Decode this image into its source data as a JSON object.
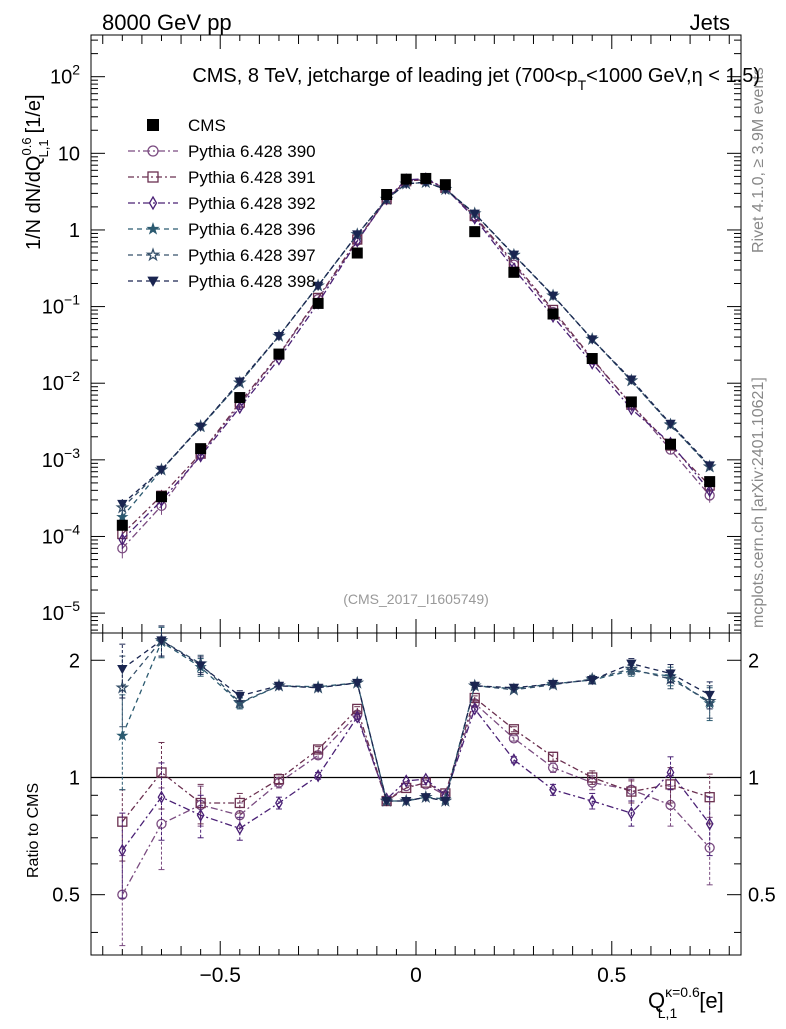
{
  "header": {
    "left": "8000 GeV pp",
    "right": "Jets"
  },
  "side": {
    "rivet": "Rivet 4.1.0, ≥ 3.9M events",
    "mcplots": "mcplots.cern.ch [arXiv:2401.10621]"
  },
  "chart_data": {
    "type": "scatter",
    "title_text": "CMS, 8 TeV, jetcharge of leading jet (700<p",
    "title_sub": "T",
    "title_tail": "<1000 GeV,η < 1.5)",
    "analysis_id": "(CMS_2017_I1605749)",
    "ylabel_main": "1/N dN/dQ",
    "ylabel_sup": "0.6",
    "ylabel_sub": "L,1",
    "ylabel_unit": "[1/e]",
    "ylabel_ratio": "Ratio to CMS",
    "xlabel_main": "Q",
    "xlabel_sup": "κ=0.6",
    "xlabel_sub": "L,1",
    "xlabel_unit": "[e]",
    "xlim": [
      -0.83,
      0.83
    ],
    "ylim_main": [
      5.5e-06,
      350
    ],
    "ylim_ratio": [
      0.35,
      2.35
    ],
    "main_yticks": [
      {
        "v": 100,
        "b": "10",
        "e": "2"
      },
      {
        "v": 10,
        "b": "10",
        "e": ""
      },
      {
        "v": 1,
        "b": "1",
        "e": ""
      },
      {
        "v": 0.1,
        "b": "10",
        "e": "−1"
      },
      {
        "v": 0.01,
        "b": "10",
        "e": "−2"
      },
      {
        "v": 0.001,
        "b": "10",
        "e": "−3"
      },
      {
        "v": 0.0001,
        "b": "10",
        "e": "−4"
      },
      {
        "v": 1e-05,
        "b": "10",
        "e": "−5"
      }
    ],
    "ratio_yticks": [
      {
        "v": 2,
        "label": "2"
      },
      {
        "v": 1,
        "label": "1"
      },
      {
        "v": 0.5,
        "label": "0.5"
      }
    ],
    "x_ticks": [
      {
        "v": -0.5,
        "label": "−0.5"
      },
      {
        "v": 0,
        "label": "0"
      },
      {
        "v": 0.5,
        "label": "0.5"
      }
    ],
    "x": [
      -0.75,
      -0.65,
      -0.55,
      -0.45,
      -0.35,
      -0.25,
      -0.15,
      -0.075,
      -0.025,
      0.025,
      0.075,
      0.15,
      0.25,
      0.35,
      0.45,
      0.55,
      0.65,
      0.75
    ],
    "data": {
      "name": "CMS",
      "values": [
        0.00014,
        0.00033,
        0.0014,
        0.0065,
        0.024,
        0.11,
        0.5,
        2.9,
        4.6,
        4.7,
        3.9,
        0.95,
        0.28,
        0.08,
        0.021,
        0.0057,
        0.0016,
        0.00052
      ]
    },
    "series": [
      {
        "name": "Pythia 6.428 390",
        "color": "#7a4b80",
        "marker": "circle",
        "dash": "7,3,2,3",
        "ratio": [
          0.5,
          0.76,
          0.85,
          0.8,
          0.97,
          1.14,
          1.45,
          0.87,
          0.95,
          0.96,
          0.9,
          1.55,
          1.26,
          1.06,
          0.97,
          0.93,
          0.85,
          0.66
        ],
        "err": [
          0.13,
          0.18,
          0.1,
          0.06,
          0.03,
          0.02,
          0.02,
          0.01,
          0.01,
          0.01,
          0.01,
          0.02,
          0.02,
          0.03,
          0.04,
          0.06,
          0.1,
          0.13
        ]
      },
      {
        "name": "Pythia 6.428 391",
        "color": "#6b3050",
        "marker": "square",
        "dash": "6,3,2,3",
        "ratio": [
          0.77,
          1.03,
          0.86,
          0.86,
          0.99,
          1.18,
          1.5,
          0.87,
          0.94,
          0.97,
          0.91,
          1.6,
          1.33,
          1.13,
          1.0,
          0.92,
          0.96,
          0.89
        ],
        "err": [
          0.16,
          0.2,
          0.1,
          0.05,
          0.03,
          0.02,
          0.02,
          0.01,
          0.01,
          0.01,
          0.01,
          0.02,
          0.02,
          0.03,
          0.04,
          0.06,
          0.1,
          0.13
        ]
      },
      {
        "name": "Pythia 6.428 392",
        "color": "#4a2075",
        "marker": "diamond",
        "dash": "7,3,2,3",
        "ratio": [
          0.65,
          0.89,
          0.8,
          0.74,
          0.86,
          1.01,
          1.43,
          0.88,
          0.98,
          0.99,
          0.9,
          1.5,
          1.11,
          0.93,
          0.87,
          0.81,
          1.03,
          0.76
        ],
        "err": [
          0.16,
          0.2,
          0.1,
          0.05,
          0.03,
          0.02,
          0.02,
          0.01,
          0.01,
          0.01,
          0.01,
          0.02,
          0.02,
          0.03,
          0.04,
          0.06,
          0.1,
          0.13
        ]
      },
      {
        "name": "Pythia 6.428 396",
        "color": "#2b5a70",
        "marker": "star-filled",
        "dash": "5,4",
        "ratio": [
          1.28,
          2.23,
          1.92,
          1.55,
          1.72,
          1.71,
          1.75,
          0.87,
          0.87,
          0.89,
          0.88,
          1.72,
          1.69,
          1.74,
          1.78,
          1.88,
          1.82,
          1.55
        ],
        "err": [
          0.35,
          0.2,
          0.1,
          0.05,
          0.03,
          0.02,
          0.02,
          0.01,
          0.01,
          0.01,
          0.01,
          0.02,
          0.02,
          0.03,
          0.04,
          0.06,
          0.1,
          0.15
        ]
      },
      {
        "name": "Pythia 6.428 397",
        "color": "#36506a",
        "marker": "star-open",
        "dash": "5,4",
        "ratio": [
          1.7,
          2.25,
          1.96,
          1.56,
          1.72,
          1.7,
          1.75,
          0.87,
          0.87,
          0.89,
          0.87,
          1.72,
          1.68,
          1.73,
          1.79,
          1.9,
          1.79,
          1.57
        ],
        "err": [
          0.35,
          0.2,
          0.1,
          0.05,
          0.03,
          0.02,
          0.02,
          0.01,
          0.01,
          0.01,
          0.01,
          0.02,
          0.02,
          0.03,
          0.04,
          0.06,
          0.1,
          0.15
        ]
      },
      {
        "name": "Pythia 6.428 398",
        "color": "#1a2550",
        "marker": "triangle-down",
        "dash": "5,4",
        "ratio": [
          1.9,
          2.25,
          1.94,
          1.62,
          1.72,
          1.7,
          1.75,
          0.87,
          0.87,
          0.89,
          0.87,
          1.72,
          1.7,
          1.74,
          1.78,
          1.96,
          1.85,
          1.63
        ],
        "err": [
          0.3,
          0.2,
          0.1,
          0.05,
          0.03,
          0.02,
          0.02,
          0.01,
          0.01,
          0.01,
          0.01,
          0.02,
          0.02,
          0.03,
          0.04,
          0.06,
          0.1,
          0.13
        ]
      }
    ]
  }
}
